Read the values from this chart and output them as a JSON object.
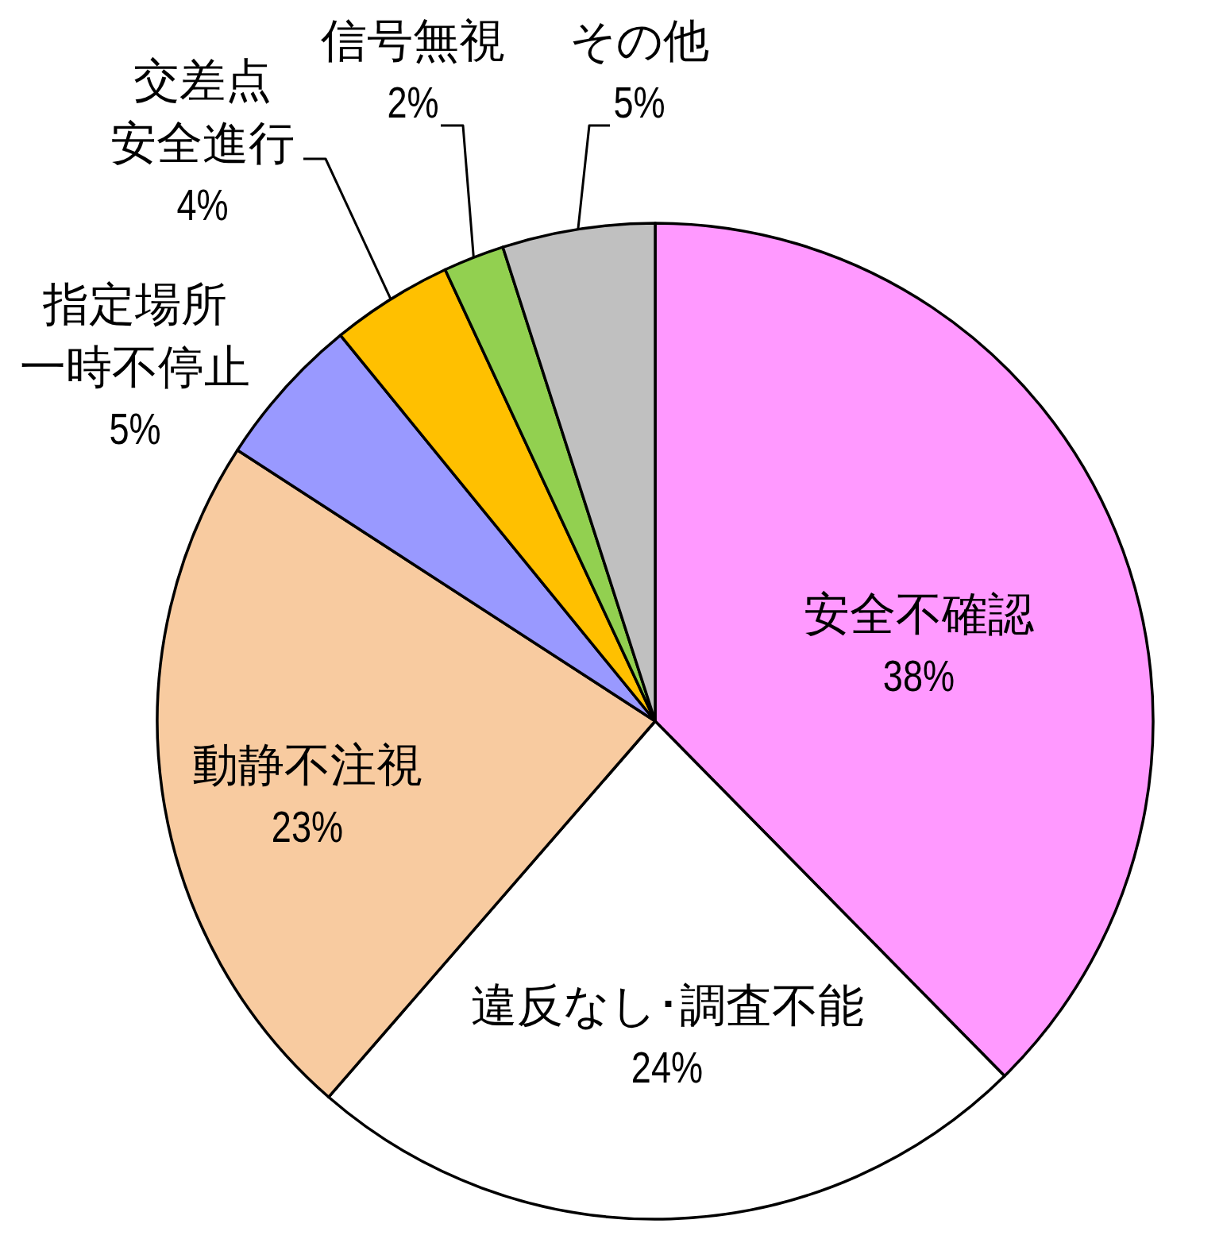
{
  "chart_data": {
    "type": "pie",
    "categories": [
      "安全不確認",
      "違反なし･調査不能",
      "動静不注視",
      "指定場所一時不停止",
      "交差点安全進行",
      "信号無視",
      "その他"
    ],
    "values": [
      38,
      24,
      23,
      5,
      4,
      2,
      5
    ],
    "colors": [
      "#ff99ff",
      "#ffffff",
      "#f8cba0",
      "#9999ff",
      "#ffc000",
      "#92d050",
      "#c0c0c0"
    ],
    "value_labels": [
      "38%",
      "24%",
      "23%",
      "5%",
      "4%",
      "2%",
      "5%"
    ]
  }
}
